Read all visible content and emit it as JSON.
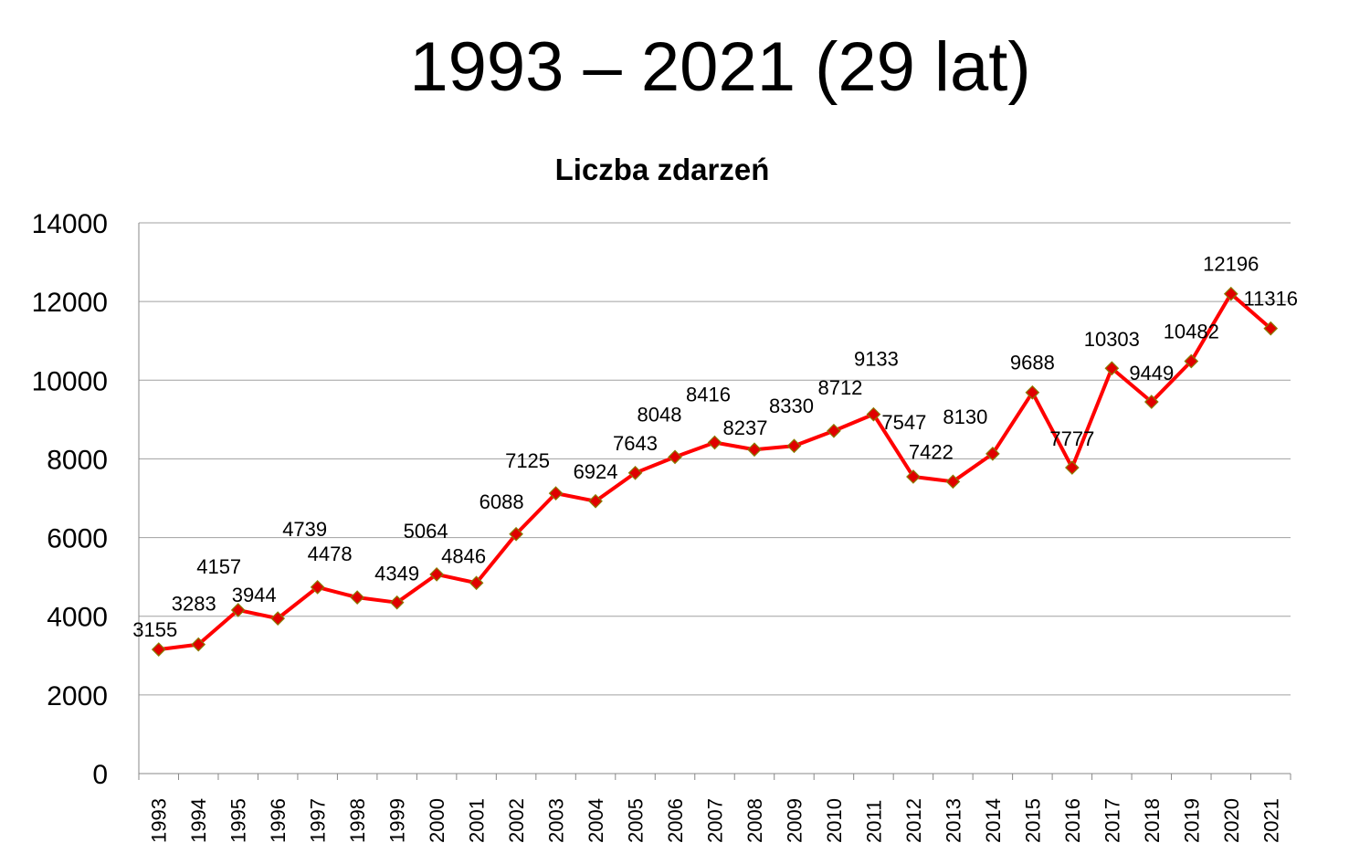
{
  "header": {
    "title": "1993 – 2021 (29 lat)"
  },
  "chart_data": {
    "type": "line",
    "title": "Liczba zdarzeń",
    "xlabel": "",
    "ylabel": "",
    "ylim": [
      0,
      14000
    ],
    "yticks": [
      0,
      2000,
      4000,
      6000,
      8000,
      10000,
      12000,
      14000
    ],
    "grid": true,
    "legend": "none",
    "categories": [
      "1993",
      "1994",
      "1995",
      "1996",
      "1997",
      "1998",
      "1999",
      "2000",
      "2001",
      "2002",
      "2003",
      "2004",
      "2005",
      "2006",
      "2007",
      "2008",
      "2009",
      "2010",
      "2011",
      "2012",
      "2013",
      "2014",
      "2015",
      "2016",
      "2017",
      "2018",
      "2019",
      "2020",
      "2021"
    ],
    "series": [
      {
        "name": "Liczba zdarzeń",
        "color": "#ff0000",
        "marker_color": "#e00000",
        "marker_edge": "#8a7a00",
        "values": [
          3155,
          3283,
          4157,
          3944,
          4739,
          4478,
          4349,
          5064,
          4846,
          6088,
          7125,
          6924,
          7643,
          8048,
          8416,
          8237,
          8330,
          8712,
          9133,
          7547,
          7422,
          8130,
          9688,
          7777,
          10303,
          9449,
          10482,
          12196,
          11316
        ]
      }
    ]
  }
}
